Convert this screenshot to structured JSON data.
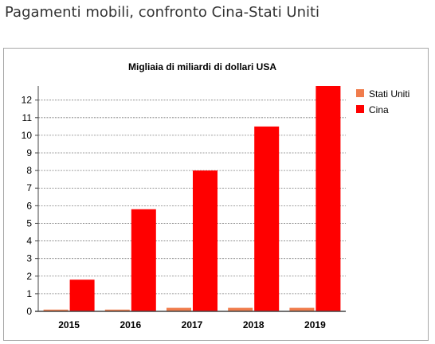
{
  "page_title": "Pagamenti mobili, confronto Cina-Stati Uniti",
  "colors": {
    "stati_uniti": "#f07c4c",
    "cina": "#ff0000",
    "grid": "#808080",
    "axis": "#444444"
  },
  "chart_data": {
    "type": "bar",
    "title": "Migliaia di miliardi di dollari USA",
    "xlabel": "",
    "ylabel": "",
    "categories": [
      "2015",
      "2016",
      "2017",
      "2018",
      "2019"
    ],
    "ylim": [
      0,
      12.8
    ],
    "yticks": [
      0,
      1,
      2,
      3,
      4,
      5,
      6,
      7,
      8,
      9,
      10,
      11,
      12
    ],
    "grid": true,
    "legend_position": "right",
    "series": [
      {
        "name": "Stati Uniti",
        "color": "#f07c4c",
        "values": [
          0.1,
          0.1,
          0.2,
          0.2,
          0.2
        ]
      },
      {
        "name": "Cina",
        "color": "#ff0000",
        "values": [
          1.8,
          5.8,
          8.0,
          10.5,
          12.8
        ]
      }
    ]
  }
}
